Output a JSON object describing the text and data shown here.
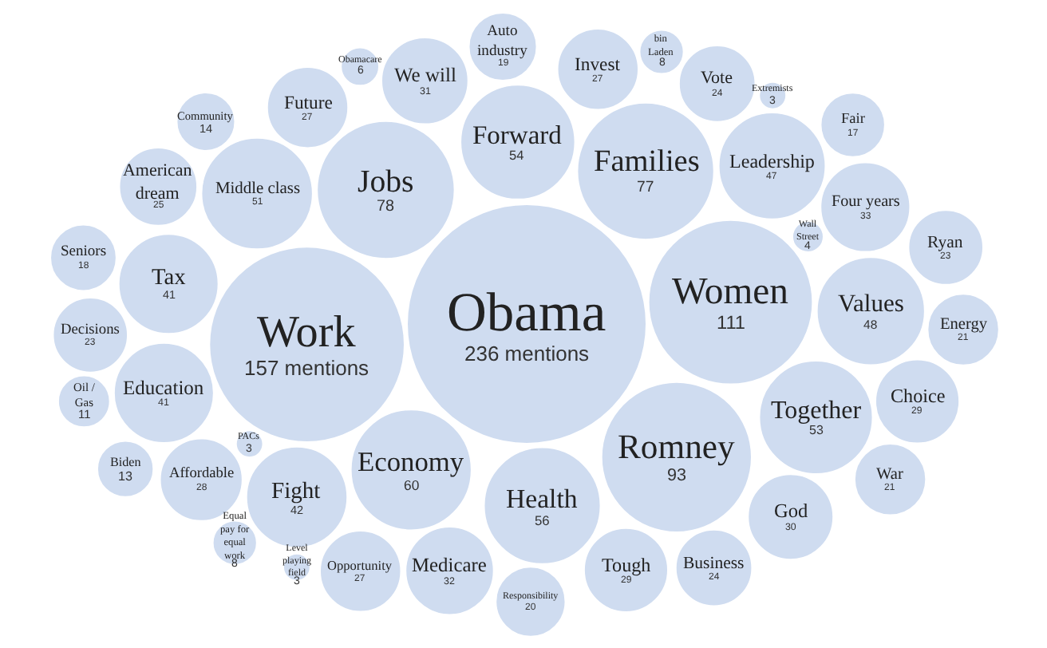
{
  "chart_data": {
    "type": "other",
    "categories": [
      "Obama",
      "Work",
      "Women",
      "Romney",
      "Jobs",
      "Families",
      "Economy",
      "Health",
      "Forward",
      "Together",
      "Middle class",
      "Values",
      "Leadership",
      "Fight",
      "Tax",
      "Education",
      "Medicare",
      "Four years",
      "We will",
      "God",
      "Tough",
      "Choice",
      "Affordable",
      "Future",
      "Invest",
      "Opportunity",
      "American dream",
      "Vote",
      "Business",
      "Decisions",
      "Ryan",
      "Energy",
      "War",
      "Responsibility",
      "Seniors",
      "Auto industry",
      "Fair",
      "Community",
      "Biden",
      "Oil / Gas",
      "Equal pay for equal work",
      "bin Laden",
      "Obamacare",
      "Wall Street",
      "PACs",
      "Extremists",
      "Level playing field"
    ],
    "values": [
      236,
      157,
      111,
      93,
      78,
      77,
      60,
      56,
      54,
      53,
      51,
      48,
      47,
      42,
      41,
      41,
      32,
      33,
      31,
      30,
      29,
      29,
      28,
      27,
      27,
      27,
      25,
      24,
      24,
      23,
      23,
      21,
      21,
      20,
      18,
      19,
      17,
      14,
      13,
      11,
      8,
      8,
      6,
      4,
      3,
      3,
      3
    ],
    "value_labels": [
      "236 mentions",
      "157 mentions",
      "111",
      "93",
      "78",
      "77",
      "60",
      "56",
      "54",
      "53",
      "51",
      "48",
      "47",
      "42",
      "41",
      "41",
      "32",
      "33",
      "31",
      "30",
      "29",
      "29",
      "28",
      "27",
      "27",
      "27",
      "25",
      "24",
      "24",
      "23",
      "23",
      "21",
      "21",
      "20",
      "18",
      "19",
      "17",
      "14",
      "13",
      "11",
      "8",
      "8",
      "6",
      "4",
      "3",
      "3",
      "3"
    ],
    "color": "#cfdcf0"
  }
}
